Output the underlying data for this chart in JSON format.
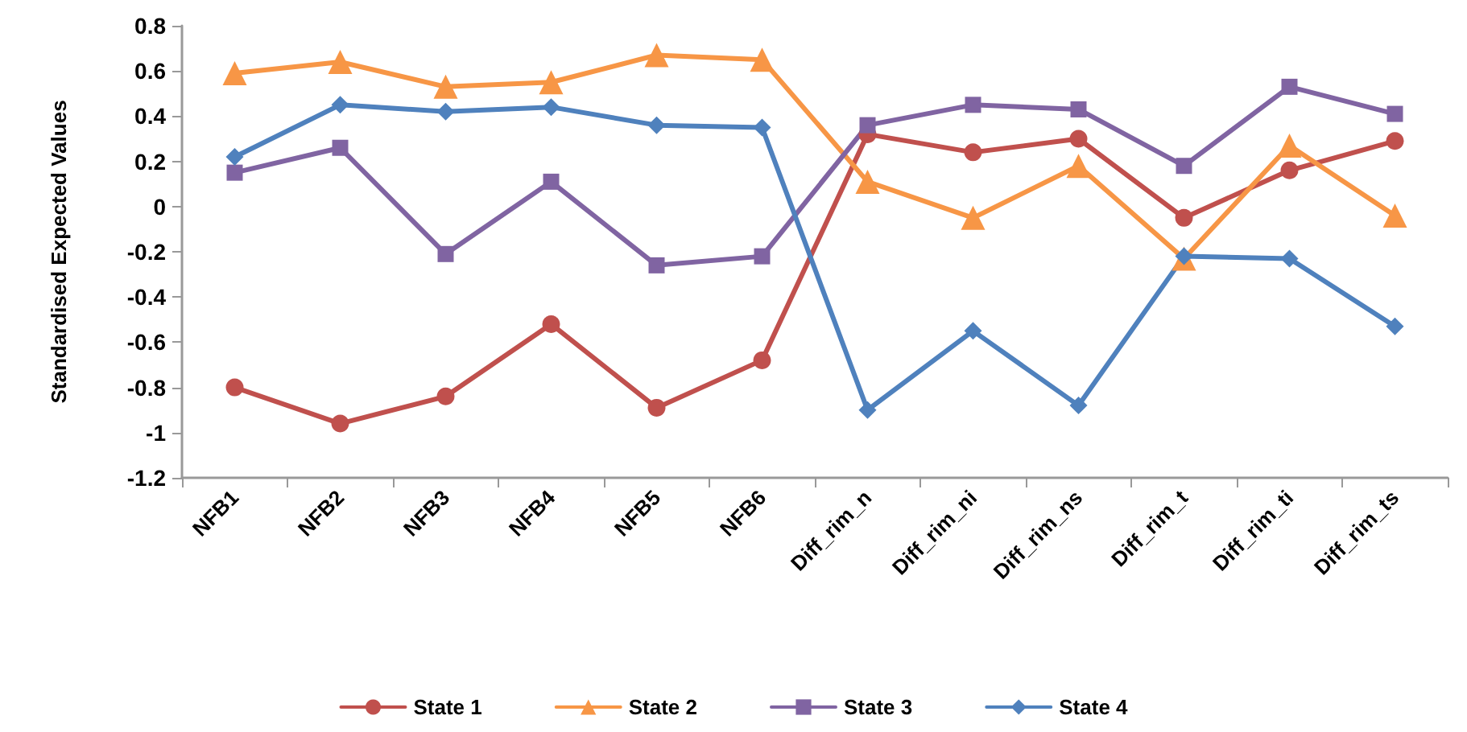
{
  "chart_data": {
    "type": "line",
    "ylabel": "Standardised Expected Values",
    "categories": [
      "NFB1",
      "NFB2",
      "NFB3",
      "NFB4",
      "NFB5",
      "NFB6",
      "Diff_rim_n",
      "Diff_rim_ni",
      "Diff_rim_ns",
      "Diff_rim_t",
      "Diff_rim_ti",
      "Diff_rim_ts"
    ],
    "series": [
      {
        "name": "State 1",
        "color": "#c0504d",
        "marker": "circle",
        "values": [
          -0.8,
          -0.96,
          -0.84,
          -0.52,
          -0.89,
          -0.68,
          0.32,
          0.24,
          0.3,
          -0.05,
          0.16,
          0.29
        ]
      },
      {
        "name": "State 2",
        "color": "#f79646",
        "marker": "triangle",
        "values": [
          0.59,
          0.64,
          0.53,
          0.55,
          0.67,
          0.65,
          0.11,
          -0.05,
          0.18,
          -0.23,
          0.27,
          -0.04
        ]
      },
      {
        "name": "State 3",
        "color": "#8064a2",
        "marker": "square",
        "values": [
          0.15,
          0.26,
          -0.21,
          0.11,
          -0.26,
          -0.22,
          0.36,
          0.45,
          0.43,
          0.18,
          0.53,
          0.41
        ]
      },
      {
        "name": "State 4",
        "color": "#4f81bd",
        "marker": "diamond",
        "values": [
          0.22,
          0.45,
          0.42,
          0.44,
          0.36,
          0.35,
          -0.9,
          -0.55,
          -0.88,
          -0.22,
          -0.23,
          -0.53
        ]
      }
    ],
    "ylim": [
      -1.2,
      0.8
    ],
    "yticks": [
      -1.2,
      -1,
      -0.8,
      -0.6,
      -0.4,
      -0.2,
      0,
      0.2,
      0.4,
      0.6,
      0.8
    ],
    "grid": false,
    "legend": "bottom",
    "line_style": "solid"
  }
}
